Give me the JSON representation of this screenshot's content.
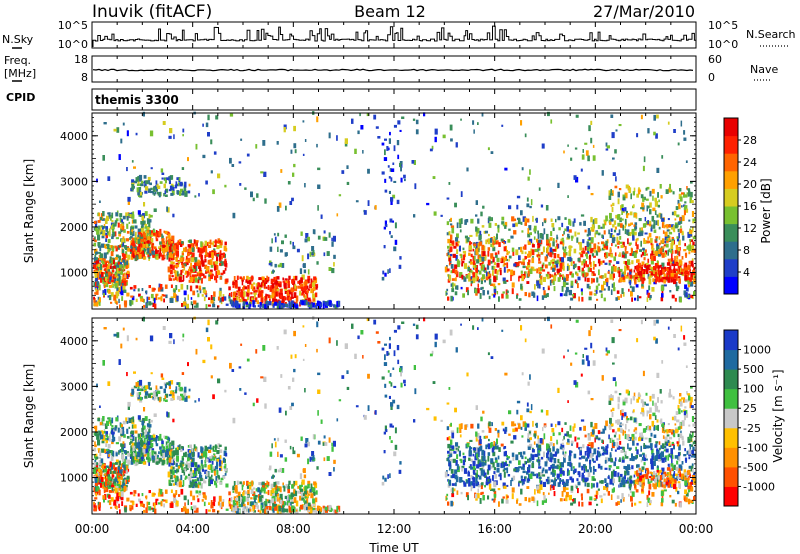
{
  "header": {
    "station": "Inuvik (fitACF)",
    "beam": "Beam 12",
    "date": "27/Mar/2010"
  },
  "nsky_panel": {
    "left_label": "N.Sky",
    "left_ticks": [
      "10^5",
      "10^0"
    ],
    "right_ticks": [
      "10^5",
      "10^0"
    ],
    "right_label": "N.Search"
  },
  "freq_panel": {
    "left_label_1": "Freq.",
    "left_label_2": "[MHz]",
    "left_ticks": [
      "18",
      "8"
    ],
    "right_ticks": [
      "60",
      "0"
    ],
    "right_label": "Nave"
  },
  "cpid_panel": {
    "label": "CPID",
    "value": "themis 3300"
  },
  "chart_data": [
    {
      "type": "heatmap",
      "name": "power",
      "ylabel": "Slant Range [km]",
      "ylim": [
        200,
        4500
      ],
      "yticks": [
        "4000",
        "3000",
        "2000",
        "1000"
      ],
      "xlim": [
        0,
        24
      ],
      "colorbar_label": "Power [dB]",
      "colorbar_ticks": [
        "28",
        "24",
        "20",
        "16",
        "12",
        "8",
        "4"
      ],
      "colorbar_colors": [
        "#0000ff",
        "#1f3ec8",
        "#2e6e8c",
        "#3a8e5a",
        "#78c030",
        "#d6cc20",
        "#ffa000",
        "#ff6400",
        "#ff2000",
        "#e80000"
      ],
      "colorbar_range": [
        0,
        32
      ]
    },
    {
      "type": "heatmap",
      "name": "velocity",
      "ylabel": "Slant Range [km]",
      "ylim": [
        200,
        4500
      ],
      "yticks": [
        "4000",
        "3000",
        "2000",
        "1000"
      ],
      "xlim": [
        0,
        24
      ],
      "colorbar_label": "Velocity [m s⁻¹]",
      "colorbar_ticks": [
        "1000",
        "500",
        "100",
        "25",
        "-25",
        "-100",
        "-500",
        "-1000"
      ],
      "colorbar_colors": [
        "#ff0000",
        "#ff5000",
        "#ff9000",
        "#ffc000",
        "#c8c8c8",
        "#40c040",
        "#2e8a50",
        "#1f6aa0",
        "#1a3ac8"
      ],
      "colorbar_range": [
        -1200,
        1200
      ]
    }
  ],
  "x_axis": {
    "ticks": [
      "00:00",
      "04:00",
      "08:00",
      "12:00",
      "16:00",
      "20:00",
      "00:00"
    ],
    "label": "Time UT"
  }
}
